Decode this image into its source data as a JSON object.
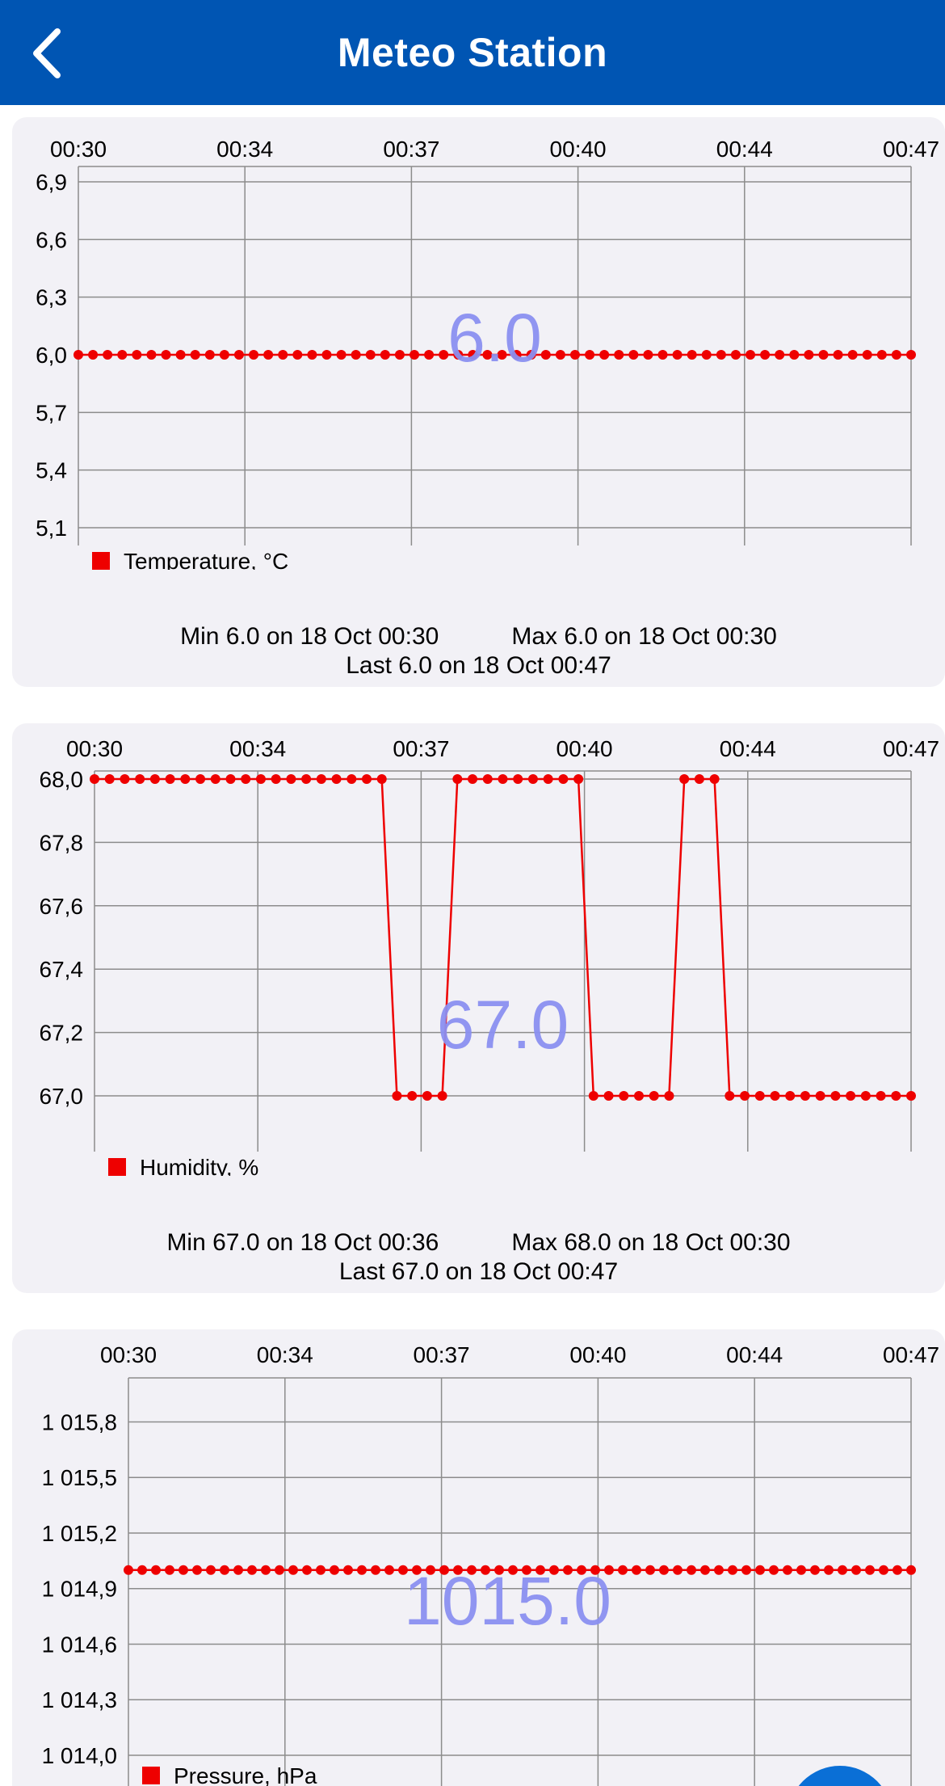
{
  "header": {
    "title": "Meteo Station",
    "back_icon": "chevron-left-icon",
    "background": "#0055b3"
  },
  "colors": {
    "series": "#ee0000",
    "big_value": "#8a8ff0",
    "grid": "#8c8c8c",
    "card": "#f2f1f6"
  },
  "cards": [
    {
      "id": "temperature",
      "big_value": "6.0",
      "legend": "Temperature, °C",
      "stats": {
        "min": "Min 6.0 on 18 Oct 00:30",
        "max": "Max 6.0 on 18 Oct 00:30",
        "last": "Last 6.0 on 18 Oct 00:47"
      }
    },
    {
      "id": "humidity",
      "big_value": "67.0",
      "legend": "Humidity, %",
      "stats": {
        "min": "Min 67.0 on 18 Oct 00:36",
        "max": "Max 68.0 on 18 Oct 00:30",
        "last": "Last 67.0 on 18 Oct 00:47"
      }
    },
    {
      "id": "pressure",
      "big_value": "1015.0",
      "legend": "Pressure, hPa",
      "stats": null
    }
  ],
  "chart_data": [
    {
      "type": "line",
      "series": [
        {
          "name": "Temperature, °C",
          "segments": [
            {
              "from": 0,
              "to": 58,
              "value": 6.0
            }
          ]
        }
      ],
      "x_tick_labels": [
        "00:30",
        "00:34",
        "00:37",
        "00:40",
        "00:44",
        "00:47"
      ],
      "y_tick_labels": [
        "6,9",
        "6,6",
        "6,3",
        "6,0",
        "5,7",
        "5,4",
        "5,1"
      ],
      "y_ticks": [
        6.9,
        6.6,
        6.3,
        6.0,
        5.7,
        5.4,
        5.1
      ],
      "ylim": [
        5.1,
        6.9
      ],
      "point_count": 58,
      "grid": true,
      "legend_position": "bottom-left"
    },
    {
      "type": "line",
      "series": [
        {
          "name": "Humidity, %",
          "segments": [
            {
              "from": 0,
              "to": 20,
              "value": 68.0
            },
            {
              "from": 20,
              "to": 24,
              "value": 67.0
            },
            {
              "from": 24,
              "to": 33,
              "value": 68.0
            },
            {
              "from": 33,
              "to": 39,
              "value": 67.0
            },
            {
              "from": 39,
              "to": 42,
              "value": 68.0
            },
            {
              "from": 42,
              "to": 55,
              "value": 67.0
            }
          ]
        }
      ],
      "x_tick_labels": [
        "00:30",
        "00:34",
        "00:37",
        "00:40",
        "00:44",
        "00:47"
      ],
      "y_tick_labels": [
        "68,0",
        "67,8",
        "67,6",
        "67,4",
        "67,2",
        "67,0"
      ],
      "y_ticks": [
        68.0,
        67.8,
        67.6,
        67.4,
        67.2,
        67.0
      ],
      "ylim": [
        67.0,
        68.0
      ],
      "point_count": 55,
      "grid": true,
      "legend_position": "bottom-left"
    },
    {
      "type": "line",
      "series": [
        {
          "name": "Pressure, hPa",
          "segments": [
            {
              "from": 0,
              "to": 58,
              "value": 1015.0
            }
          ]
        }
      ],
      "x_tick_labels": [
        "00:30",
        "00:34",
        "00:37",
        "00:40",
        "00:44",
        "00:47"
      ],
      "y_tick_labels": [
        "1 015,8",
        "1 015,5",
        "1 015,2",
        "1 014,9",
        "1 014,6",
        "1 014,3",
        "1 014,0"
      ],
      "y_ticks": [
        1015.8,
        1015.5,
        1015.2,
        1014.9,
        1014.6,
        1014.3,
        1014.0
      ],
      "ylim": [
        1014.0,
        1015.85
      ],
      "point_count": 58,
      "grid": true,
      "legend_position": "bottom-left"
    }
  ]
}
